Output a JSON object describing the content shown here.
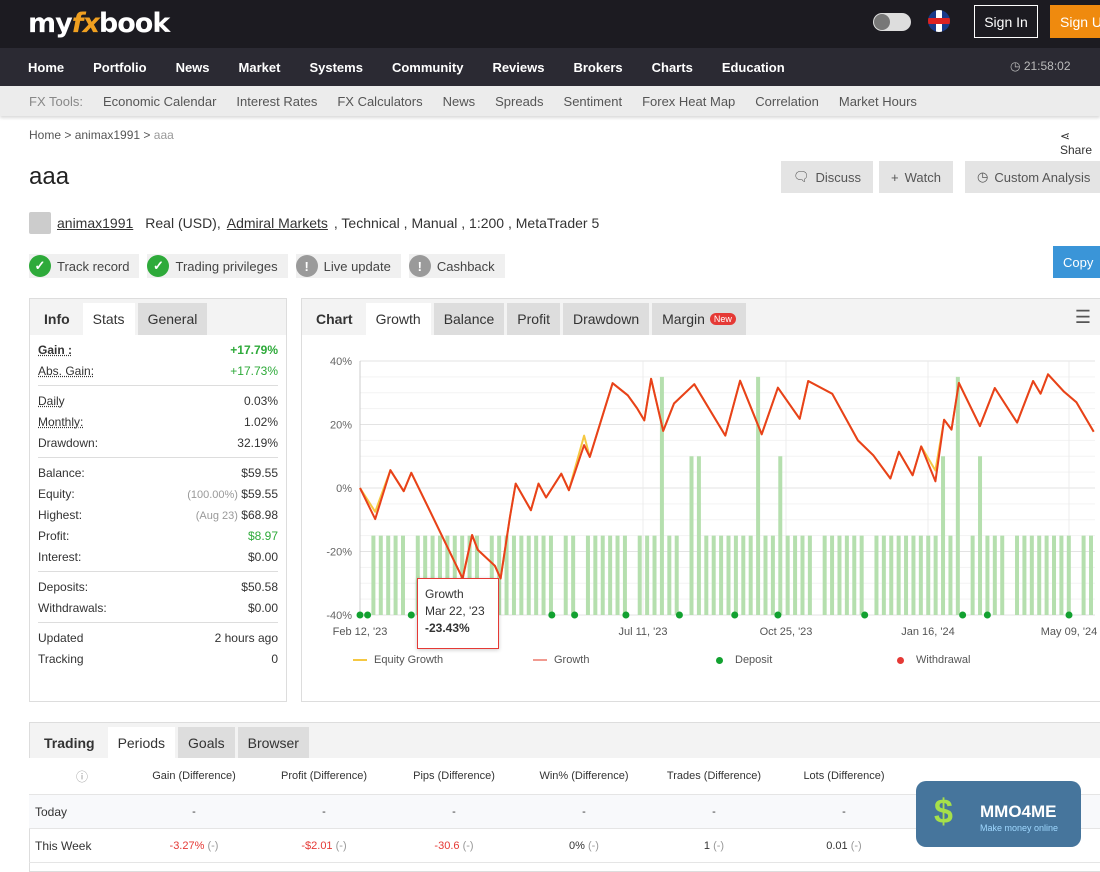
{
  "header": {
    "logo": "myfxbook",
    "sign_in": "Sign In",
    "sign_up": "Sign Up",
    "time": "21:58:02"
  },
  "nav": [
    "Home",
    "Portfolio",
    "News",
    "Market",
    "Systems",
    "Community",
    "Reviews",
    "Brokers",
    "Charts",
    "Education"
  ],
  "tools": {
    "label": "FX Tools:",
    "items": [
      "Economic Calendar",
      "Interest Rates",
      "FX Calculators",
      "News",
      "Spreads",
      "Sentiment",
      "Forex Heat Map",
      "Correlation",
      "Market Hours"
    ]
  },
  "breadcrumb": {
    "home": "Home",
    "user": "animax1991",
    "current": "aaa",
    "share": "Share"
  },
  "title": "aaa",
  "buttons": {
    "discuss": "Discuss",
    "watch": "Watch",
    "custom": "Custom Analysis",
    "copy": "Copy"
  },
  "owner": {
    "name": "animax1991",
    "type": "Real (USD),",
    "broker": "Admiral Markets",
    "rest": ", Technical , Manual , 1:200 , MetaTrader 5"
  },
  "badges": [
    {
      "label": "Track record",
      "ok": true
    },
    {
      "label": "Trading privileges",
      "ok": true
    },
    {
      "label": "Live update",
      "ok": false
    },
    {
      "label": "Cashback",
      "ok": false
    }
  ],
  "info": {
    "tabs": [
      "Info",
      "Stats",
      "General"
    ],
    "gain": "Gain :",
    "gain_v": "+17.79%",
    "abs": "Abs. Gain:",
    "abs_v": "+17.73%",
    "daily": "Daily",
    "daily_v": "0.03%",
    "monthly": "Monthly:",
    "monthly_v": "1.02%",
    "dd": "Drawdown:",
    "dd_v": "32.19%",
    "balance": "Balance:",
    "balance_v": "$59.55",
    "equity": "Equity:",
    "equity_p": "(100.00%)",
    "equity_v": "$59.55",
    "highest": "Highest:",
    "highest_d": "(Aug 23)",
    "highest_v": "$68.98",
    "profit": "Profit:",
    "profit_v": "$8.97",
    "interest": "Interest:",
    "interest_v": "$0.00",
    "deposits": "Deposits:",
    "deposits_v": "$50.58",
    "withdrawals": "Withdrawals:",
    "withdrawals_v": "$0.00",
    "updated": "Updated",
    "updated_v": "2 hours ago",
    "tracking": "Tracking",
    "tracking_v": "0"
  },
  "chart_tabs": {
    "title": "Chart",
    "tabs": [
      "Growth",
      "Balance",
      "Profit",
      "Drawdown",
      "Margin"
    ],
    "new": "New"
  },
  "colors": {
    "growth": "#e8401c",
    "equity": "#f5c842",
    "deposit": "#12a130",
    "withdrawal": "#e53935",
    "bars": "#b5dfae"
  },
  "chart_data": {
    "type": "line",
    "ylim": [
      -40,
      40
    ],
    "yticks": [
      "40%",
      "20%",
      "0%",
      "-20%",
      "-40%"
    ],
    "grid": true,
    "legend": "bottom",
    "xticks": [
      {
        "date": "2023-02-12",
        "label": "Feb 12, '23"
      },
      {
        "date": "2023-07-11",
        "label": "Jul 11, '23"
      },
      {
        "date": "2023-10-25",
        "label": "Oct 25, '23"
      },
      {
        "date": "2024-01-16",
        "label": "Jan 16, '24"
      },
      {
        "date": "2024-05-09",
        "label": "May 09, '24"
      }
    ],
    "legend_items": [
      "Equity Growth",
      "Growth",
      "Deposit",
      "Withdrawal"
    ],
    "growth": [
      [
        "2023-02-12",
        0
      ],
      [
        "2023-02-20",
        -9.8
      ],
      [
        "2023-02-28",
        5.6
      ],
      [
        "2023-03-07",
        -1
      ],
      [
        "2023-03-11",
        4.8
      ],
      [
        "2023-03-19",
        -5
      ],
      [
        "2023-04-07",
        -28.5
      ],
      [
        "2023-04-12",
        -14.8
      ],
      [
        "2023-04-15",
        -19.5
      ],
      [
        "2023-04-24",
        -24.5
      ],
      [
        "2023-04-27",
        -28.5
      ],
      [
        "2023-05-02",
        -9
      ],
      [
        "2023-05-05",
        1.4
      ],
      [
        "2023-05-13",
        -7
      ],
      [
        "2023-05-17",
        1.4
      ],
      [
        "2023-05-21",
        -3
      ],
      [
        "2023-05-29",
        4.5
      ],
      [
        "2023-06-02",
        -0.7
      ],
      [
        "2023-06-10",
        13.5
      ],
      [
        "2023-06-13",
        9.8
      ],
      [
        "2023-06-25",
        33
      ],
      [
        "2023-07-03",
        29.2
      ],
      [
        "2023-07-08",
        25
      ],
      [
        "2023-07-12",
        21.3
      ],
      [
        "2023-07-17",
        34.4
      ],
      [
        "2023-07-26",
        18
      ],
      [
        "2023-08-03",
        26.6
      ],
      [
        "2023-08-18",
        32.7
      ],
      [
        "2023-09-10",
        16.5
      ],
      [
        "2023-09-21",
        33.8
      ],
      [
        "2023-10-07",
        16.9
      ],
      [
        "2023-10-19",
        31.6
      ],
      [
        "2023-11-02",
        21.8
      ],
      [
        "2023-11-07",
        33.7
      ],
      [
        "2023-11-21",
        29.7
      ],
      [
        "2023-12-06",
        15
      ],
      [
        "2023-12-15",
        10.3
      ],
      [
        "2023-12-25",
        3
      ],
      [
        "2023-12-30",
        11.4
      ],
      [
        "2024-01-07",
        4
      ],
      [
        "2024-01-12",
        13.1
      ],
      [
        "2024-01-22",
        2.1
      ],
      [
        "2024-01-29",
        21.5
      ],
      [
        "2024-02-04",
        18.4
      ],
      [
        "2024-02-10",
        33.1
      ],
      [
        "2024-02-27",
        19.5
      ],
      [
        "2024-03-10",
        31.5
      ],
      [
        "2024-03-28",
        20.6
      ],
      [
        "2024-04-10",
        33.7
      ],
      [
        "2024-04-16",
        29.7
      ],
      [
        "2024-04-22",
        35.8
      ],
      [
        "2024-05-05",
        30.3
      ],
      [
        "2024-05-15",
        27
      ],
      [
        "2024-05-29",
        17.7
      ]
    ],
    "equity_diff": {
      "2023-02-20": -7.5,
      "2023-06-10": 16.5,
      "2024-01-22": 5.5
    },
    "deposits": [
      "2023-02-12",
      "2023-02-16",
      "2023-03-11",
      "2023-05-24",
      "2023-06-05",
      "2023-07-02",
      "2023-08-07",
      "2023-09-17",
      "2023-10-19",
      "2023-12-10",
      "2024-02-13",
      "2024-03-04",
      "2024-05-09"
    ],
    "bars": [
      null,
      -15,
      -15,
      -15,
      -15,
      -15,
      null,
      -15,
      -15,
      -15,
      -15,
      -15,
      -15,
      -15,
      -15,
      -15,
      null,
      -15,
      -15,
      -15,
      -15,
      -15,
      -15,
      -15,
      -15,
      -15,
      null,
      -15,
      -15,
      null,
      -15,
      -15,
      -15,
      -15,
      -15,
      -15,
      null,
      -15,
      -15,
      -15,
      35,
      -15,
      -15,
      null,
      10,
      10,
      -15,
      -15,
      -15,
      -15,
      -15,
      -15,
      -15,
      35,
      -15,
      -15,
      10,
      -15,
      -15,
      -15,
      -15,
      null,
      -15,
      -15,
      -15,
      -15,
      -15,
      -15,
      null,
      -15,
      -15,
      -15,
      -15,
      -15,
      -15,
      -15,
      -15,
      -15,
      10,
      -15,
      35,
      null,
      -15,
      10,
      -15,
      -15,
      -15,
      null,
      -15,
      -15,
      -15,
      -15,
      -15,
      -15,
      -15,
      -15,
      null,
      -15,
      -15
    ],
    "tooltip": {
      "series": "Growth",
      "date": "Mar 22, '23",
      "value": "-23.43%"
    }
  },
  "periods": {
    "tabs": [
      "Trading",
      "Periods",
      "Goals",
      "Browser"
    ],
    "headers": [
      "Gain (Difference)",
      "Profit (Difference)",
      "Pips (Difference)",
      "Win% (Difference)",
      "Trades (Difference)",
      "Lots (Difference)"
    ],
    "rows": [
      {
        "label": "Today",
        "cells": [
          [
            "-",
            ""
          ],
          [
            "-",
            ""
          ],
          [
            "-",
            ""
          ],
          [
            "-",
            ""
          ],
          [
            "-",
            ""
          ],
          [
            "-",
            ""
          ]
        ]
      },
      {
        "label": "This Week",
        "cells": [
          [
            "-3.27%",
            "(-)"
          ],
          [
            "-$2.01",
            "(-)"
          ],
          [
            "-30.6",
            "(-)"
          ],
          [
            "0%",
            "(-)"
          ],
          [
            "1",
            "(-)"
          ],
          [
            "0.01",
            "(-)"
          ]
        ]
      }
    ]
  },
  "watermark": {
    "title": "MMO4ME",
    "subtitle": "Make money online"
  }
}
